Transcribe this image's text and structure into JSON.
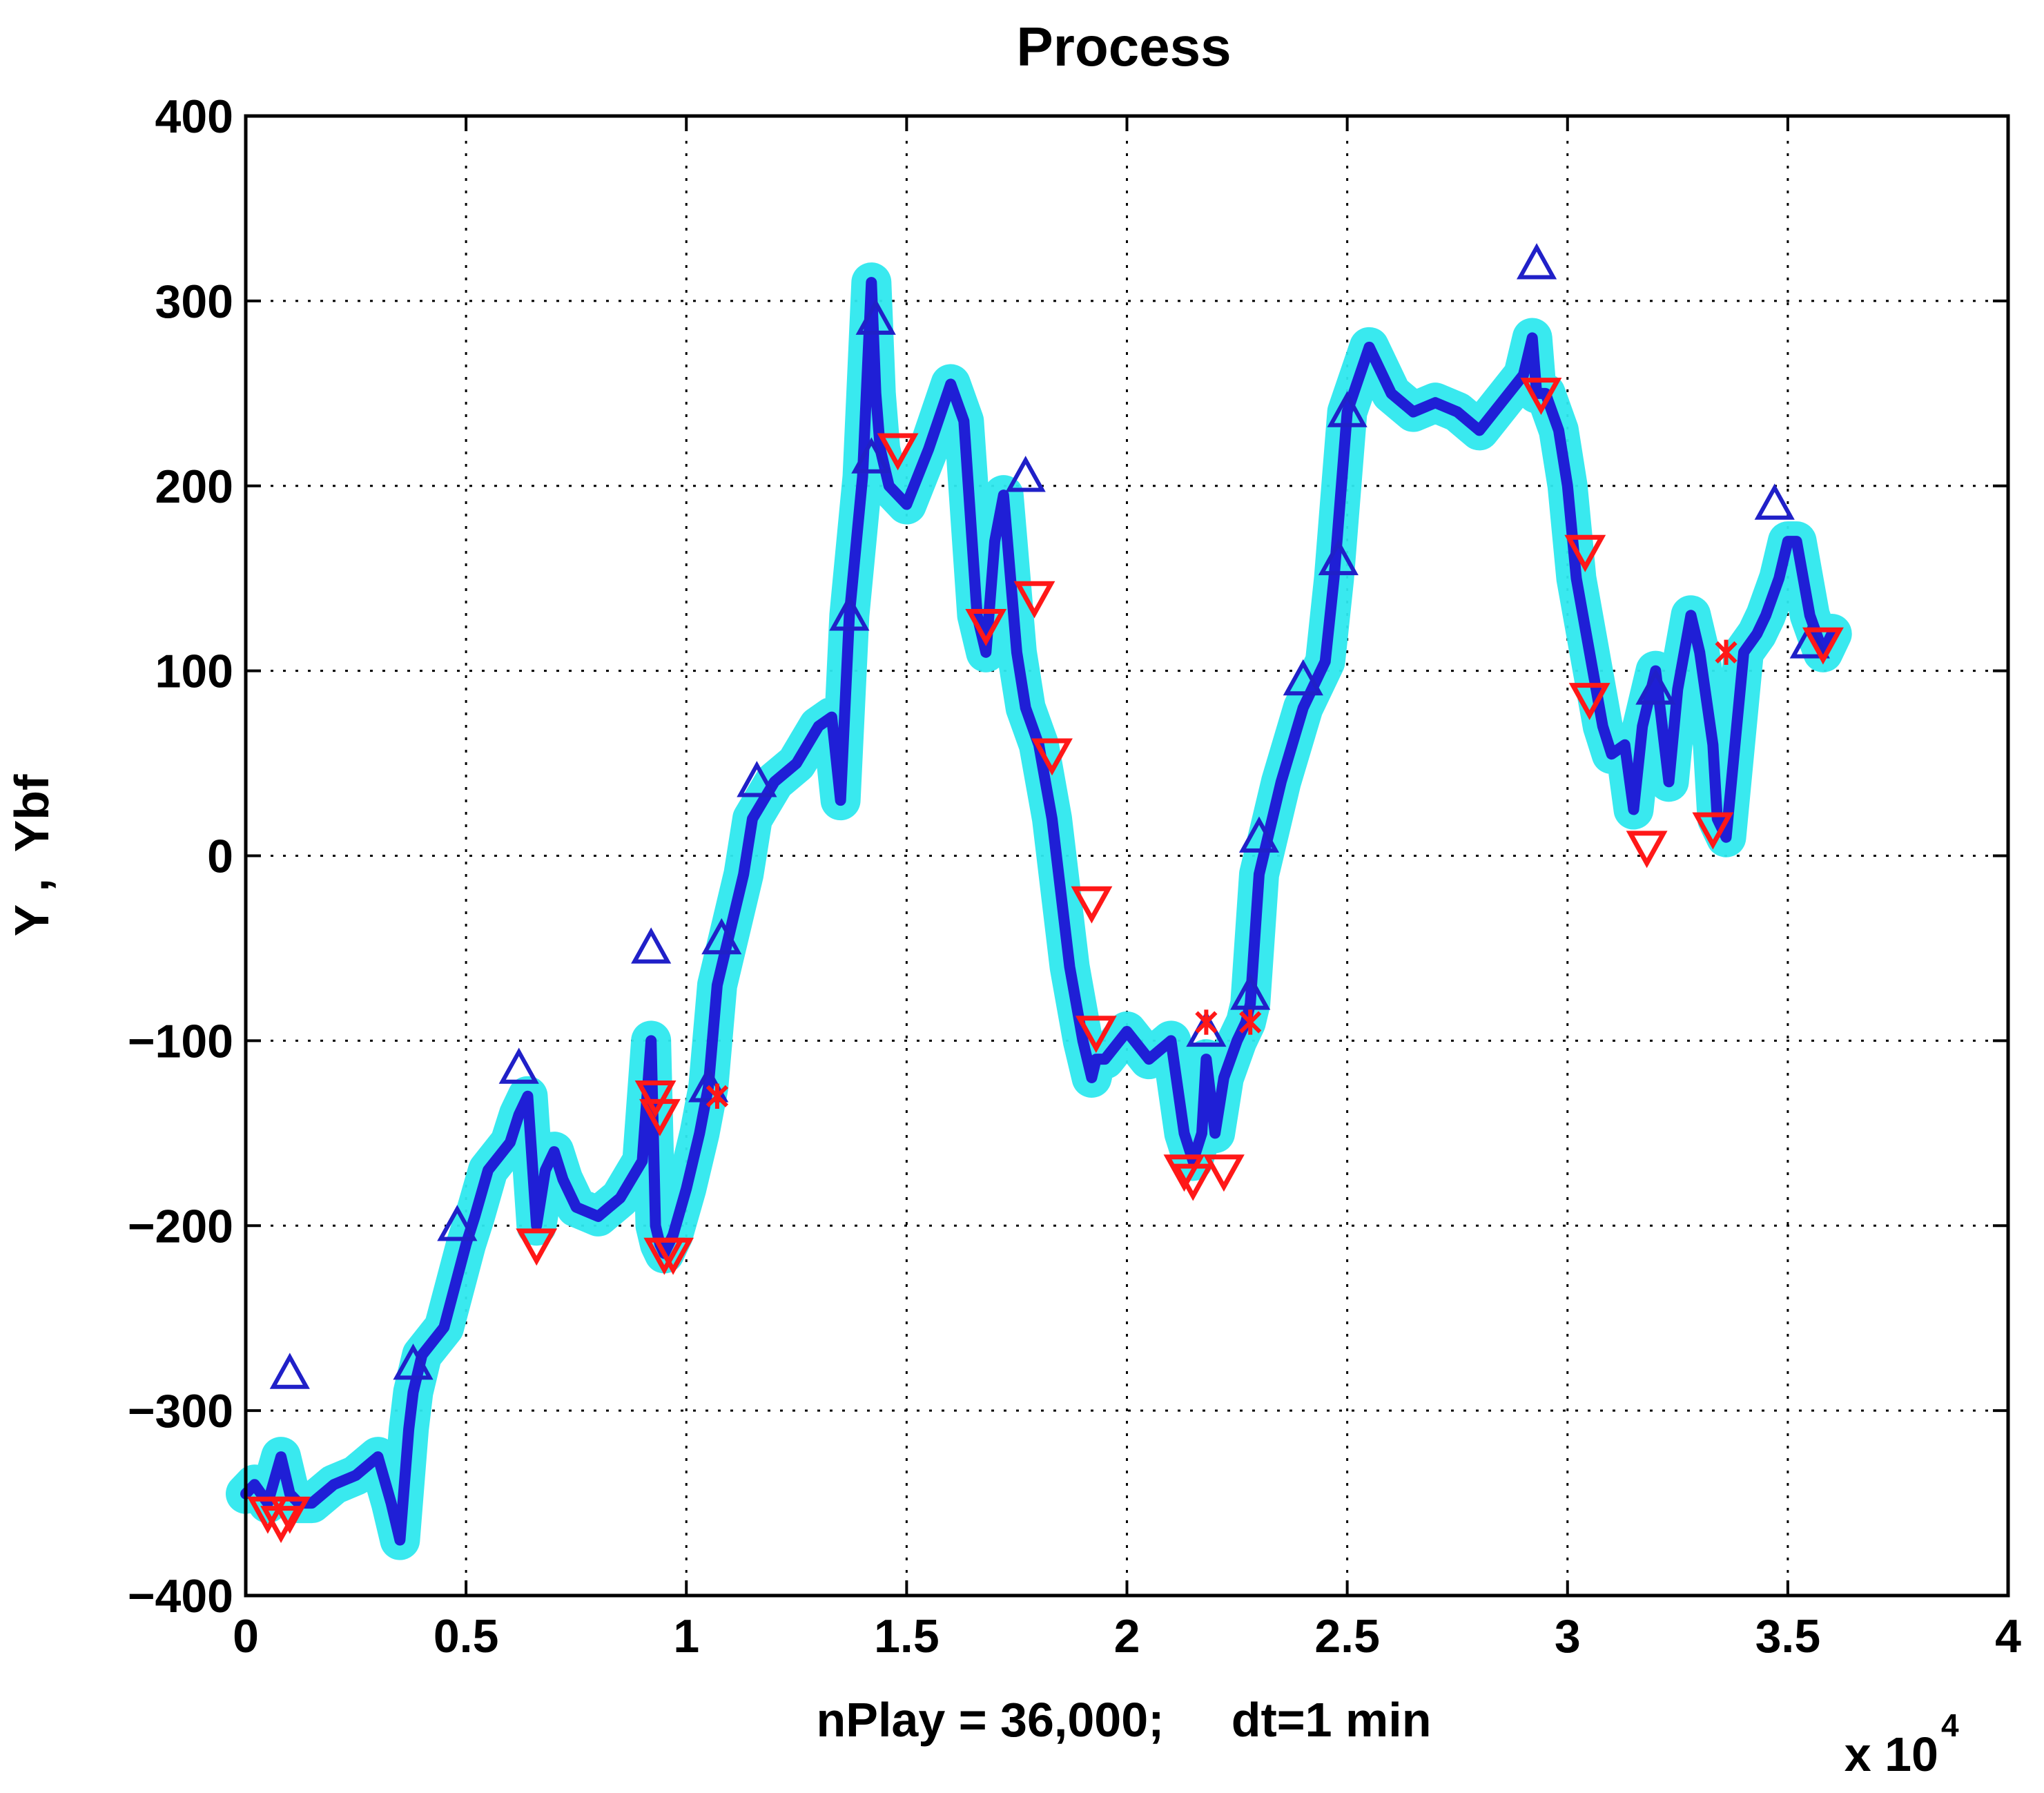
{
  "chart_data": {
    "type": "line",
    "title": "Process",
    "xlabel": "nPlay = 36,000;     dt=1 min",
    "ylabel": "Y ,  Ybf",
    "x_multiplier_label": "x 10",
    "x_multiplier_exponent": "4",
    "xlim": [
      0,
      4
    ],
    "ylim": [
      -400,
      400
    ],
    "x_ticks": [
      "0",
      "0.5",
      "1",
      "1.5",
      "2",
      "2.5",
      "3",
      "3.5",
      "4"
    ],
    "y_ticks": [
      "400",
      "300",
      "200",
      "100",
      "0",
      "−100",
      "−200",
      "−300",
      "−400"
    ],
    "grid": true,
    "colors": {
      "band": "#2ee8ee",
      "line": "#1f1fd6",
      "buy_marker": "#2020c8",
      "sell_marker": "#ff1818",
      "axes": "#000000"
    },
    "series": [
      {
        "role": "band",
        "x": [
          0,
          0.02,
          0.05,
          0.08,
          0.1,
          0.12,
          0.15,
          0.2,
          0.25,
          0.3,
          0.33,
          0.35,
          0.37,
          0.38,
          0.4,
          0.45,
          0.5,
          0.52,
          0.55,
          0.6,
          0.62,
          0.64,
          0.66,
          0.68,
          0.7,
          0.72,
          0.75,
          0.8,
          0.85,
          0.9,
          0.92,
          0.93,
          0.94,
          0.95,
          0.97,
          1.0,
          1.03,
          1.05,
          1.07,
          1.1,
          1.13,
          1.15,
          1.2,
          1.25,
          1.3,
          1.33,
          1.35,
          1.37,
          1.4,
          1.42,
          1.43,
          1.44,
          1.46,
          1.5,
          1.55,
          1.6,
          1.63,
          1.66,
          1.68,
          1.7,
          1.72,
          1.75,
          1.77,
          1.8,
          1.83,
          1.87,
          1.9,
          1.92,
          1.93,
          1.95,
          2.0,
          2.05,
          2.1,
          2.13,
          2.15,
          2.17,
          2.18,
          2.2,
          2.22,
          2.25,
          2.27,
          2.28,
          2.3,
          2.35,
          2.4,
          2.45,
          2.47,
          2.5,
          2.55,
          2.6,
          2.65,
          2.7,
          2.75,
          2.8,
          2.85,
          2.9,
          2.92,
          2.93,
          2.95,
          2.98,
          3.0,
          3.02,
          3.05,
          3.08,
          3.1,
          3.13,
          3.15,
          3.17,
          3.2,
          3.23,
          3.25,
          3.28,
          3.3,
          3.33,
          3.34,
          3.36,
          3.4,
          3.43,
          3.45,
          3.48,
          3.5,
          3.52,
          3.55,
          3.58,
          3.6
        ],
        "values": [
          -345,
          -340,
          -350,
          -325,
          -345,
          -350,
          -350,
          -340,
          -335,
          -325,
          -350,
          -370,
          -310,
          -290,
          -270,
          -255,
          -210,
          -195,
          -170,
          -155,
          -140,
          -130,
          -200,
          -170,
          -160,
          -175,
          -190,
          -195,
          -185,
          -165,
          -100,
          -200,
          -210,
          -215,
          -205,
          -180,
          -150,
          -125,
          -70,
          -40,
          -10,
          20,
          40,
          50,
          70,
          75,
          30,
          130,
          205,
          310,
          250,
          220,
          200,
          190,
          220,
          255,
          235,
          130,
          110,
          170,
          195,
          110,
          80,
          60,
          20,
          -60,
          -100,
          -120,
          -110,
          -110,
          -95,
          -110,
          -100,
          -150,
          -165,
          -150,
          -110,
          -150,
          -120,
          -100,
          -90,
          -80,
          -10,
          40,
          80,
          105,
          150,
          240,
          275,
          250,
          240,
          245,
          240,
          230,
          245,
          260,
          280,
          250,
          250,
          230,
          200,
          150,
          110,
          70,
          55,
          60,
          25,
          70,
          100,
          40,
          90,
          130,
          110,
          60,
          20,
          10,
          110,
          120,
          130,
          150,
          170,
          170,
          130,
          110,
          120
        ],
        "spread": 28
      },
      {
        "role": "line",
        "x": [
          0,
          0.02,
          0.05,
          0.08,
          0.1,
          0.12,
          0.15,
          0.2,
          0.25,
          0.3,
          0.33,
          0.35,
          0.37,
          0.38,
          0.4,
          0.45,
          0.5,
          0.52,
          0.55,
          0.6,
          0.62,
          0.64,
          0.66,
          0.68,
          0.7,
          0.72,
          0.75,
          0.8,
          0.85,
          0.9,
          0.92,
          0.93,
          0.94,
          0.95,
          0.97,
          1.0,
          1.03,
          1.05,
          1.07,
          1.1,
          1.13,
          1.15,
          1.2,
          1.25,
          1.3,
          1.33,
          1.35,
          1.37,
          1.4,
          1.42,
          1.43,
          1.44,
          1.46,
          1.5,
          1.55,
          1.6,
          1.63,
          1.66,
          1.68,
          1.7,
          1.72,
          1.75,
          1.77,
          1.8,
          1.83,
          1.87,
          1.9,
          1.92,
          1.93,
          1.95,
          2.0,
          2.05,
          2.1,
          2.13,
          2.15,
          2.17,
          2.18,
          2.2,
          2.22,
          2.25,
          2.27,
          2.28,
          2.3,
          2.35,
          2.4,
          2.45,
          2.47,
          2.5,
          2.55,
          2.6,
          2.65,
          2.7,
          2.75,
          2.8,
          2.85,
          2.9,
          2.92,
          2.93,
          2.95,
          2.98,
          3.0,
          3.02,
          3.05,
          3.08,
          3.1,
          3.13,
          3.15,
          3.17,
          3.2,
          3.23,
          3.25,
          3.28,
          3.3,
          3.33,
          3.34,
          3.36,
          3.4,
          3.43,
          3.45,
          3.48,
          3.5,
          3.52,
          3.55,
          3.58,
          3.6
        ],
        "values": [
          -345,
          -340,
          -350,
          -325,
          -345,
          -350,
          -350,
          -340,
          -335,
          -325,
          -350,
          -370,
          -310,
          -290,
          -270,
          -255,
          -210,
          -195,
          -170,
          -155,
          -140,
          -130,
          -200,
          -170,
          -160,
          -175,
          -190,
          -195,
          -185,
          -165,
          -100,
          -200,
          -210,
          -215,
          -205,
          -180,
          -150,
          -125,
          -70,
          -40,
          -10,
          20,
          40,
          50,
          70,
          75,
          30,
          130,
          205,
          310,
          250,
          220,
          200,
          190,
          220,
          255,
          235,
          130,
          110,
          170,
          195,
          110,
          80,
          60,
          20,
          -60,
          -100,
          -120,
          -110,
          -110,
          -95,
          -110,
          -100,
          -150,
          -165,
          -150,
          -110,
          -150,
          -120,
          -100,
          -90,
          -80,
          -10,
          40,
          80,
          105,
          150,
          240,
          275,
          250,
          240,
          245,
          240,
          230,
          245,
          260,
          280,
          250,
          250,
          230,
          200,
          150,
          110,
          70,
          55,
          60,
          25,
          70,
          100,
          40,
          90,
          130,
          110,
          60,
          20,
          10,
          110,
          120,
          130,
          150,
          170,
          170,
          130,
          110,
          120
        ]
      }
    ],
    "markers_up": [
      [
        0.1,
        -280
      ],
      [
        0.38,
        -275
      ],
      [
        0.48,
        -200
      ],
      [
        0.62,
        -115
      ],
      [
        0.92,
        -50
      ],
      [
        1.05,
        -125
      ],
      [
        1.08,
        -45
      ],
      [
        1.16,
        40
      ],
      [
        1.37,
        130
      ],
      [
        1.42,
        215
      ],
      [
        1.43,
        290
      ],
      [
        1.77,
        205
      ],
      [
        2.18,
        -95
      ],
      [
        2.28,
        -75
      ],
      [
        2.3,
        10
      ],
      [
        2.4,
        95
      ],
      [
        2.48,
        160
      ],
      [
        2.5,
        240
      ],
      [
        2.93,
        320
      ],
      [
        3.2,
        90
      ],
      [
        3.47,
        190
      ],
      [
        3.55,
        115
      ]
    ],
    "markers_down": [
      [
        0.05,
        -355
      ],
      [
        0.08,
        -360
      ],
      [
        0.1,
        -355
      ],
      [
        0.66,
        -210
      ],
      [
        0.93,
        -130
      ],
      [
        0.94,
        -140
      ],
      [
        0.95,
        -215
      ],
      [
        0.97,
        -215
      ],
      [
        1.48,
        220
      ],
      [
        1.68,
        125
      ],
      [
        1.79,
        140
      ],
      [
        1.83,
        55
      ],
      [
        1.92,
        -25
      ],
      [
        1.93,
        -95
      ],
      [
        2.13,
        -170
      ],
      [
        2.15,
        -175
      ],
      [
        2.22,
        -170
      ],
      [
        2.94,
        250
      ],
      [
        3.04,
        165
      ],
      [
        3.05,
        85
      ],
      [
        3.18,
        5
      ],
      [
        3.33,
        15
      ],
      [
        3.58,
        115
      ]
    ],
    "markers_star": [
      [
        1.07,
        -130
      ],
      [
        2.18,
        -90
      ],
      [
        2.28,
        -90
      ],
      [
        3.36,
        110
      ]
    ]
  }
}
